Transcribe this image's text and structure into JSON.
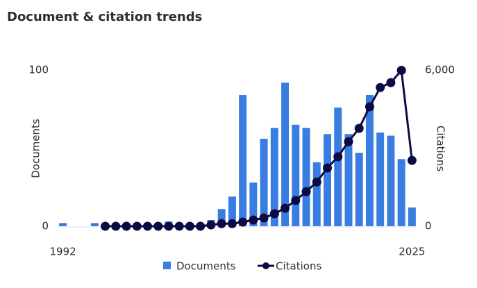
{
  "chart_data": {
    "type": "bar-line",
    "title": "Document & citation trends",
    "x": [
      1992,
      1993,
      1994,
      1995,
      1996,
      1997,
      1998,
      1999,
      2000,
      2001,
      2002,
      2003,
      2004,
      2005,
      2006,
      2007,
      2008,
      2009,
      2010,
      2011,
      2012,
      2013,
      2014,
      2015,
      2016,
      2017,
      2018,
      2019,
      2020,
      2021,
      2022,
      2023,
      2024,
      2025
    ],
    "xlim": [
      1991.5,
      2025.5
    ],
    "xticks": [
      1992,
      2025
    ],
    "ylabel": "Documents",
    "y2label": "Citations",
    "ylim": [
      0,
      100
    ],
    "yticks": [
      0,
      100
    ],
    "y2lim": [
      0,
      6000
    ],
    "y2ticks": [
      0,
      {
        "value": 6000,
        "label": "6,000"
      }
    ],
    "series": [
      {
        "name": "Documents",
        "color": "#3a7de0",
        "values": [
          2,
          0,
          0,
          2,
          0,
          0,
          0,
          0,
          0,
          0,
          3,
          0,
          0,
          0,
          4,
          11,
          19,
          84,
          28,
          56,
          63,
          92,
          65,
          63,
          41,
          59,
          76,
          59,
          47,
          84,
          60,
          58,
          43,
          12
        ]
      },
      {
        "name": "Citations",
        "color": "#0b0a45",
        "axis": "y2",
        "values": [
          null,
          null,
          null,
          null,
          0,
          0,
          0,
          0,
          0,
          0,
          0,
          0,
          0,
          0,
          50,
          100,
          100,
          160,
          240,
          320,
          480,
          690,
          990,
          1330,
          1700,
          2240,
          2670,
          3250,
          3760,
          4590,
          5330,
          5520,
          5990,
          2530
        ]
      }
    ]
  }
}
